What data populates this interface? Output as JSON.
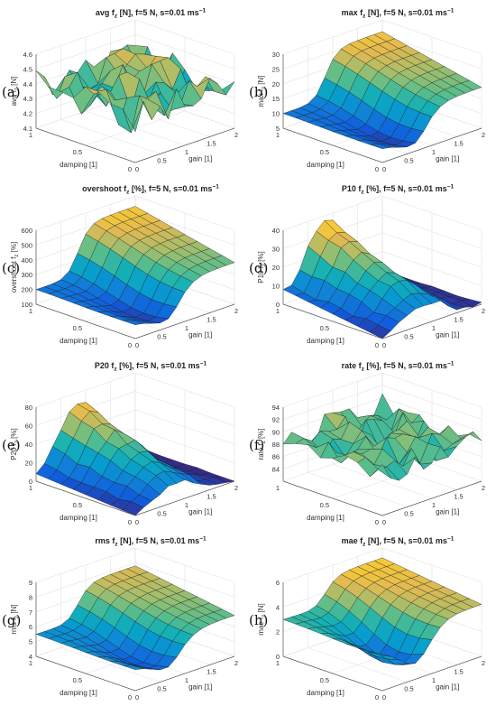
{
  "chart_data": [
    {
      "id": "a",
      "type": "surface",
      "panel_label": "(a)",
      "title": "avg f",
      "title_sub": "z",
      "title_tail": " [N], f=5 N, s=0.01 ms",
      "title_sup": "−1",
      "zlabel": "avg f",
      "zlabel_sub": "z",
      "zlabel_tail": " [N]",
      "zlim": [
        4.1,
        4.6
      ],
      "zticks": [
        "4.1",
        "4.2",
        "4.3",
        "4.4",
        "4.5",
        "4.6"
      ],
      "xlabel": "gain [1]",
      "ylabel": "damping [1]",
      "xlim": [
        0,
        2
      ],
      "ylim": [
        0,
        1
      ],
      "xticks": [
        "0",
        "0.5",
        "1",
        "1.5",
        "2"
      ],
      "yticks": [
        "0",
        "0.5",
        "1"
      ],
      "surface": {
        "model": "noise",
        "base": 4.38,
        "amp": 0.13,
        "seed": 3,
        "spikes": [
          [
            0.9,
            0.45,
            0.22
          ],
          [
            1.3,
            0.3,
            0.2
          ]
        ]
      }
    },
    {
      "id": "b",
      "type": "surface",
      "panel_label": "(b)",
      "title": "max f",
      "title_sub": "z",
      "title_tail": " [N], f=5 N, s=0.01 ms",
      "title_sup": "−1",
      "zlabel": "max f",
      "zlabel_sub": "z",
      "zlabel_tail": " [N]",
      "zlim": [
        5,
        30
      ],
      "zticks": [
        "5",
        "10",
        "15",
        "20",
        "25",
        "30"
      ],
      "xlabel": "gain [1]",
      "ylabel": "damping [1]",
      "xlim": [
        0,
        2
      ],
      "ylim": [
        0,
        1
      ],
      "xticks": [
        "0",
        "0.5",
        "1",
        "1.5",
        "2"
      ],
      "yticks": [
        "0",
        "0.5",
        "1"
      ],
      "surface": {
        "model": "ridge",
        "base": 10,
        "peak": 16,
        "dip": 5,
        "spikes": [
          [
            0.1,
            1,
            18
          ]
        ]
      }
    },
    {
      "id": "c",
      "type": "surface",
      "panel_label": "(c)",
      "title": "overshoot f",
      "title_sub": "z",
      "title_tail": " [%], f=5 N, s=0.01 ms",
      "title_sup": "−1",
      "zlabel": "overshoot f",
      "zlabel_sub": "z",
      "zlabel_tail": " [%]",
      "zlim": [
        100,
        600
      ],
      "zticks": [
        "100",
        "200",
        "300",
        "400",
        "500",
        "600"
      ],
      "xlabel": "gain [1]",
      "ylabel": "damping [1]",
      "xlim": [
        0,
        2
      ],
      "ylim": [
        0,
        1
      ],
      "xticks": [
        "0",
        "0.5",
        "1",
        "1.5",
        "2"
      ],
      "yticks": [
        "0",
        "0.5",
        "1"
      ],
      "surface": {
        "model": "ridge",
        "base": 200,
        "peak": 330,
        "dip": 100,
        "spikes": [
          [
            0.1,
            1,
            360
          ]
        ]
      }
    },
    {
      "id": "d",
      "type": "surface",
      "panel_label": "(d)",
      "title": "P10 f",
      "title_sub": "z",
      "title_tail": " [%], f=5 N, s=0.01 ms",
      "title_sup": "−1",
      "zlabel": "P10 f",
      "zlabel_sub": "z",
      "zlabel_tail": " [%]",
      "zlim": [
        0,
        40
      ],
      "zticks": [
        "0",
        "10",
        "20",
        "30",
        "40"
      ],
      "xlabel": "gain [1]",
      "ylabel": "damping [1]",
      "xlim": [
        0,
        2
      ],
      "ylim": [
        0,
        1
      ],
      "xticks": [
        "0",
        "0.5",
        "1",
        "1.5",
        "2"
      ],
      "yticks": [
        "0",
        "0.5",
        "1"
      ],
      "surface": {
        "model": "dome",
        "base": 0,
        "peak": 38,
        "amp": 3,
        "seed": 5
      }
    },
    {
      "id": "e",
      "type": "surface",
      "panel_label": "(e)",
      "title": "P20 f",
      "title_sub": "z",
      "title_tail": " [%], f=5 N, s=0.01 ms",
      "title_sup": "−1",
      "zlabel": "P20 f",
      "zlabel_sub": "z",
      "zlabel_tail": " [%]",
      "zlim": [
        0,
        80
      ],
      "zticks": [
        "0",
        "20",
        "40",
        "60",
        "80"
      ],
      "xlabel": "gain [1]",
      "ylabel": "damping [1]",
      "xlim": [
        0,
        2
      ],
      "ylim": [
        0,
        1
      ],
      "xticks": [
        "0",
        "0.5",
        "1",
        "1.5",
        "2"
      ],
      "yticks": [
        "0",
        "0.5",
        "1"
      ],
      "surface": {
        "model": "dome",
        "base": 0,
        "peak": 70,
        "amp": 5,
        "seed": 9
      }
    },
    {
      "id": "f",
      "type": "surface",
      "panel_label": "(f)",
      "title": "rate f",
      "title_sub": "z",
      "title_tail": " [%], f=5 N, s=0.01 ms",
      "title_sup": "−1",
      "zlabel": "rate f",
      "zlabel_sub": "z",
      "zlabel_tail": " [%]",
      "zlim": [
        82,
        94
      ],
      "zticks": [
        "84",
        "86",
        "88",
        "90",
        "92",
        "94"
      ],
      "xlabel": "gain [1]",
      "ylabel": "damping [1]",
      "xlim": [
        0,
        2
      ],
      "ylim": [
        0,
        1
      ],
      "xticks": [
        "0",
        "0.5",
        "1",
        "1.5",
        "2"
      ],
      "yticks": [
        "0",
        "0.5",
        "1"
      ],
      "surface": {
        "model": "noise",
        "base": 88.5,
        "amp": 2.2,
        "seed": 11,
        "spikes": [
          [
            1.1,
            0.3,
            4
          ],
          [
            0.8,
            0.55,
            3.5
          ]
        ]
      }
    },
    {
      "id": "g",
      "type": "surface",
      "panel_label": "(g)",
      "title": "rms f",
      "title_sub": "z",
      "title_tail": " [N], f=5 N, s=0.01 ms",
      "title_sup": "−1",
      "zlabel": "rms f",
      "zlabel_sub": "z",
      "zlabel_tail": " [N]",
      "zlim": [
        4,
        9
      ],
      "zticks": [
        "4",
        "5",
        "6",
        "7",
        "8",
        "9"
      ],
      "xlabel": "gain [1]",
      "ylabel": "damping [1]",
      "xlim": [
        0,
        2
      ],
      "ylim": [
        0,
        1
      ],
      "xticks": [
        "0",
        "0.5",
        "1",
        "1.5",
        "2"
      ],
      "yticks": [
        "0",
        "0.5",
        "1"
      ],
      "surface": {
        "model": "ridge",
        "base": 5.5,
        "peak": 2.3,
        "dip": 1.2,
        "spikes": [
          [
            0.1,
            1,
            3.2
          ]
        ]
      }
    },
    {
      "id": "h",
      "type": "surface",
      "panel_label": "(h)",
      "title": "mae f",
      "title_sub": "z",
      "title_tail": " [N], f=5 N, s=0.01 ms",
      "title_sup": "−1",
      "zlabel": "mae f",
      "zlabel_sub": "z",
      "zlabel_tail": " [N]",
      "zlim": [
        0,
        6
      ],
      "zticks": [
        "0",
        "2",
        "4",
        "6"
      ],
      "xlabel": "gain [1]",
      "ylabel": "damping [1]",
      "xlim": [
        0,
        2
      ],
      "ylim": [
        0,
        1
      ],
      "xticks": [
        "0",
        "0.5",
        "1",
        "1.5",
        "2"
      ],
      "yticks": [
        "0",
        "0.5",
        "1"
      ],
      "surface": {
        "model": "ridge",
        "base": 3,
        "peak": 2.2,
        "dip": 2.6,
        "spikes": []
      }
    }
  ]
}
